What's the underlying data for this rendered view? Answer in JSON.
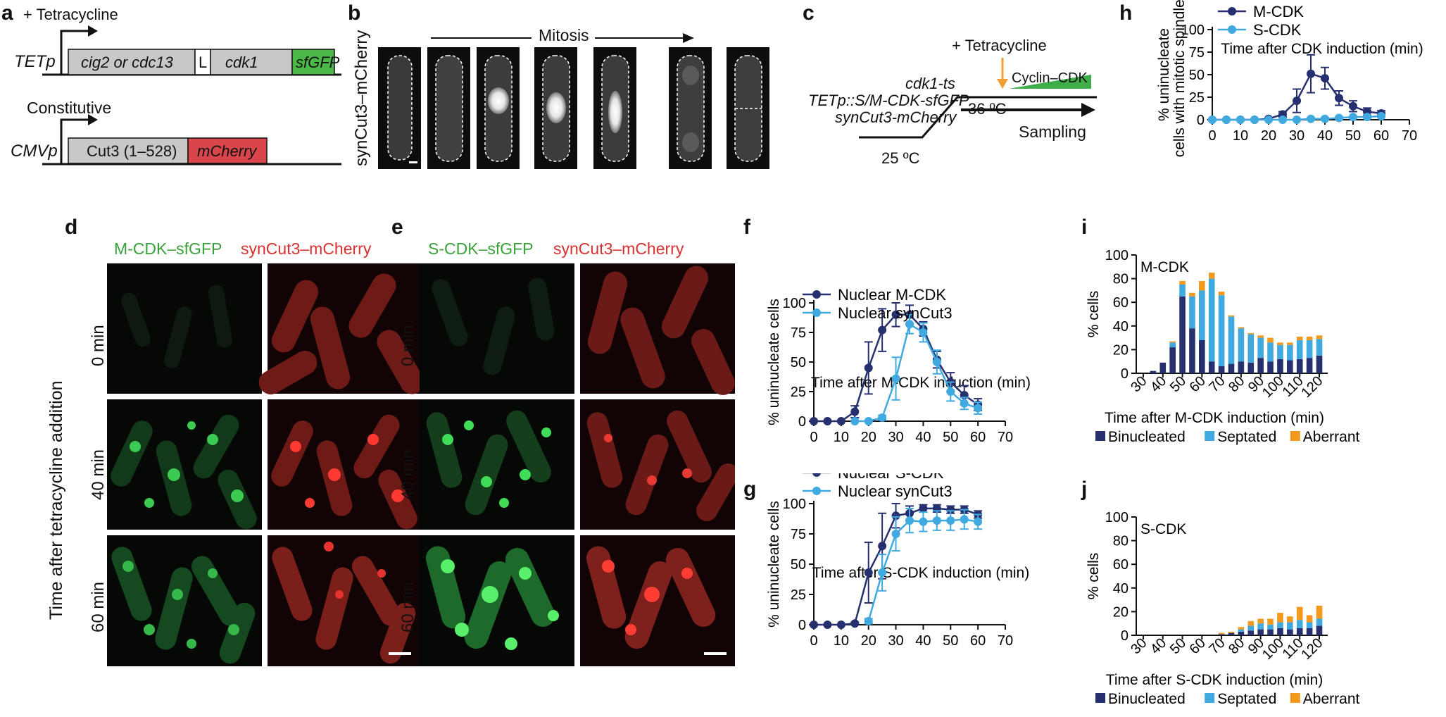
{
  "panels": {
    "a": {
      "label": "a",
      "tet_note": "+ Tetracycline",
      "promoter_tet": "TETp",
      "box_cig": "cig2 or cdc13",
      "box_L": "L",
      "box_cdk1": "cdk1",
      "box_sfgfp": "sfGFP",
      "constitutive": "Constitutive",
      "promoter_cmv": "CMVp",
      "box_cut3": "Cut3 (1–528)",
      "box_mcherry": "mCherry",
      "colors": {
        "gray": "#c8c8c8",
        "green": "#4cb848",
        "red": "#d8454a"
      }
    },
    "b": {
      "label": "b",
      "mitosis": "Mitosis",
      "side_label": "synCut3–mCherry"
    },
    "c": {
      "label": "c",
      "tet_note": "+ Tetracycline",
      "line1": "cdk1-ts",
      "line2": "TETp::S/M-CDK-sfGFP",
      "line3": "synCut3-mCherry",
      "cyclin": "Cyclin–CDK",
      "temp_high": "36 ºC",
      "temp_low": "25 ºC",
      "sampling": "Sampling",
      "colors": {
        "arrow": "#f0a030",
        "wedge": "#3fae49"
      }
    },
    "d": {
      "label": "d",
      "green_header": "M-CDK–sfGFP",
      "red_header": "synCut3–mCherry",
      "rows": [
        "0 min",
        "40 min",
        "60 min"
      ],
      "side_label": "Time after tetracycline addition"
    },
    "e": {
      "label": "e",
      "green_header": "S-CDK–sfGFP",
      "red_header": "synCut3–mCherry",
      "rows": [
        "0 min",
        "40 min",
        "60 min"
      ]
    },
    "f": {
      "label": "f"
    },
    "g": {
      "label": "g"
    },
    "h": {
      "label": "h"
    },
    "i": {
      "label": "i"
    },
    "j": {
      "label": "j"
    }
  },
  "colors": {
    "dark_blue": "#27306e",
    "light_blue": "#3fa9e0",
    "orange": "#f39a1e",
    "green_text": "#3aa13a",
    "red_text": "#d8302f"
  },
  "chart_data": [
    {
      "id": "f",
      "type": "line",
      "ylabel": "% uninucleate cells",
      "xlabel": "Time after M-CDK induction (min)",
      "xlim": [
        0,
        70
      ],
      "ylim": [
        0,
        100
      ],
      "xticks": [
        0,
        10,
        20,
        30,
        40,
        50,
        60,
        70
      ],
      "yticks": [
        0,
        25,
        50,
        75,
        100
      ],
      "legend": "top-left",
      "series": [
        {
          "name": "Nuclear M-CDK",
          "color": "#27306e",
          "x": [
            0,
            5,
            10,
            15,
            20,
            25,
            30,
            35,
            40,
            45,
            50,
            55,
            60
          ],
          "y": [
            0,
            0,
            0,
            8,
            45,
            77,
            90,
            90,
            78,
            52,
            33,
            22,
            14
          ],
          "err": [
            0,
            0,
            0,
            5,
            22,
            18,
            10,
            8,
            6,
            7,
            8,
            8,
            5
          ]
        },
        {
          "name": "Nuclear synCut3",
          "color": "#3fa9e0",
          "x": [
            15,
            20,
            25,
            30,
            35,
            40,
            45,
            50,
            55,
            60
          ],
          "y": [
            0,
            0,
            3,
            36,
            82,
            75,
            50,
            25,
            15,
            11
          ],
          "err": [
            0,
            0,
            2,
            18,
            8,
            8,
            10,
            8,
            5,
            5
          ]
        }
      ]
    },
    {
      "id": "g",
      "type": "line",
      "ylabel": "% uninucleate cells",
      "xlabel": "Time after S-CDK induction (min)",
      "xlim": [
        0,
        70
      ],
      "ylim": [
        0,
        100
      ],
      "xticks": [
        0,
        10,
        20,
        30,
        40,
        50,
        60,
        70
      ],
      "yticks": [
        0,
        25,
        50,
        75,
        100
      ],
      "legend": "top-left",
      "series": [
        {
          "name": "Nuclear S-CDK",
          "color": "#27306e",
          "x": [
            0,
            5,
            10,
            15,
            20,
            25,
            30,
            35,
            40,
            45,
            50,
            55,
            60
          ],
          "y": [
            0,
            0,
            0,
            1,
            43,
            65,
            90,
            92,
            96,
            96,
            95,
            95,
            91
          ],
          "err": [
            0,
            0,
            0,
            1,
            25,
            27,
            10,
            6,
            3,
            3,
            3,
            3,
            3
          ]
        },
        {
          "name": "Nuclear synCut3",
          "color": "#3fa9e0",
          "x": [
            20,
            25,
            30,
            35,
            40,
            45,
            50,
            55,
            60
          ],
          "y": [
            3,
            43,
            75,
            86,
            85,
            86,
            86,
            87,
            85
          ],
          "err": [
            2,
            15,
            14,
            10,
            8,
            8,
            8,
            8,
            6
          ]
        }
      ]
    },
    {
      "id": "h",
      "type": "line",
      "ylabel": "% uninucleate cells with mitotic spindles",
      "xlabel": "Time after CDK induction (min)",
      "xlim": [
        0,
        70
      ],
      "ylim": [
        0,
        100
      ],
      "xticks": [
        0,
        10,
        20,
        30,
        40,
        50,
        60,
        70
      ],
      "yticks": [
        0,
        25,
        50,
        75,
        100
      ],
      "legend": "top-left",
      "series": [
        {
          "name": "M-CDK",
          "color": "#27306e",
          "x": [
            0,
            5,
            10,
            15,
            20,
            25,
            30,
            35,
            40,
            45,
            50,
            55,
            60
          ],
          "y": [
            0,
            0,
            0,
            0,
            1,
            6,
            21,
            51,
            46,
            24,
            15,
            9,
            7
          ],
          "err": [
            0,
            0,
            0,
            0,
            1,
            3,
            13,
            21,
            12,
            8,
            6,
            4,
            3
          ]
        },
        {
          "name": "S-CDK",
          "color": "#3fa9e0",
          "x": [
            0,
            5,
            10,
            15,
            20,
            25,
            30,
            35,
            40,
            45,
            50,
            55,
            60
          ],
          "y": [
            0,
            0,
            0,
            0,
            0,
            0,
            0,
            1,
            1,
            2,
            3,
            3,
            4
          ],
          "err": [
            0,
            0,
            0,
            0,
            0,
            0,
            0,
            1,
            1,
            1,
            1,
            1,
            1
          ]
        }
      ]
    },
    {
      "id": "i",
      "type": "bar",
      "title": "M-CDK",
      "ylabel": "% cells",
      "xlabel": "Time after M-CDK induction (min)",
      "ylim": [
        0,
        100
      ],
      "yticks": [
        0,
        20,
        40,
        60,
        80,
        100
      ],
      "xtick_labels": [
        "30",
        "40",
        "50",
        "60",
        "70",
        "80",
        "90",
        "100",
        "110",
        "120"
      ],
      "categories": [
        30,
        35,
        40,
        45,
        50,
        55,
        60,
        65,
        70,
        75,
        80,
        85,
        90,
        95,
        100,
        105,
        110,
        115,
        120
      ],
      "stacked": true,
      "legend": "bottom",
      "series": [
        {
          "name": "Binucleated",
          "color": "#27306e",
          "values": [
            0,
            2,
            9,
            22,
            65,
            38,
            28,
            10,
            6,
            8,
            10,
            9,
            13,
            10,
            12,
            11,
            12,
            13,
            15
          ]
        },
        {
          "name": "Septated",
          "color": "#3fa9e0",
          "values": [
            0,
            0,
            0,
            4,
            10,
            27,
            42,
            70,
            60,
            40,
            28,
            24,
            17,
            16,
            12,
            13,
            16,
            15,
            14
          ]
        },
        {
          "name": "Aberrant",
          "color": "#f39a1e",
          "values": [
            0,
            0,
            0,
            1,
            3,
            3,
            8,
            5,
            3,
            1,
            1,
            1,
            2,
            4,
            2,
            2,
            3,
            3,
            3
          ]
        }
      ]
    },
    {
      "id": "j",
      "type": "bar",
      "title": "S-CDK",
      "ylabel": "% cells",
      "xlabel": "Time after S-CDK induction (min)",
      "ylim": [
        0,
        100
      ],
      "yticks": [
        0,
        20,
        40,
        60,
        80,
        100
      ],
      "xtick_labels": [
        "30",
        "40",
        "50",
        "60",
        "70",
        "80",
        "90",
        "100",
        "110",
        "120"
      ],
      "categories": [
        30,
        35,
        40,
        45,
        50,
        55,
        60,
        65,
        70,
        75,
        80,
        85,
        90,
        95,
        100,
        105,
        110,
        115,
        120
      ],
      "stacked": true,
      "legend": "bottom",
      "series": [
        {
          "name": "Binucleated",
          "color": "#27306e",
          "values": [
            0,
            0,
            0,
            0,
            0,
            0,
            0,
            0,
            1,
            2,
            3,
            4,
            5,
            5,
            6,
            5,
            6,
            6,
            8
          ]
        },
        {
          "name": "Septated",
          "color": "#3fa9e0",
          "values": [
            0,
            0,
            0,
            0,
            0,
            0,
            0,
            0,
            0,
            0,
            2,
            4,
            5,
            4,
            5,
            6,
            7,
            5,
            6
          ]
        },
        {
          "name": "Aberrant",
          "color": "#f39a1e",
          "values": [
            0,
            0,
            0,
            0,
            0,
            0,
            0,
            0,
            1,
            1,
            2,
            4,
            4,
            5,
            8,
            5,
            11,
            6,
            11
          ]
        }
      ]
    }
  ]
}
